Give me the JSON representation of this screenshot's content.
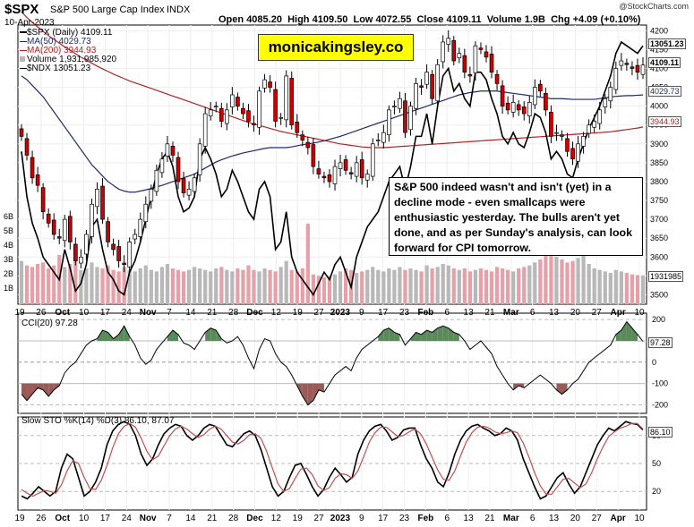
{
  "header": {
    "symbol": "$SPX",
    "name": "S&P 500 Large Cap Index",
    "exchange": "INDX",
    "date": "10-Apr-2023",
    "open_label": "Open",
    "open": "4085.20",
    "high_label": "High",
    "high": "4109.50",
    "low_label": "Low",
    "low": "4072.55",
    "close_label": "Close",
    "close": "4109.11",
    "volume_label": "Volume",
    "volume": "1.9B",
    "chg_label": "Chg",
    "chg": "+4.09 (+0.10%)",
    "watermark": "@StockCharts.com"
  },
  "brand": "monicakingsley.co",
  "legend": {
    "spx": "$SPX (Daily) 4109.11",
    "ma50": "MA(50) 4029.73",
    "ma200": "MA(200) 3944.93",
    "volume": "Volume 1,931,985,920",
    "ndx": "$NDX 13051.23"
  },
  "annotation": "S&P 500 indeed wasn't  and isn't (yet) in a decline mode - even smallcaps were enthusiastic yesterday. The bulls aren't yet done, and as per Sunday's analysis, can look forward for CPI tomorrow.",
  "price_labels": {
    "ndx": "13051.23",
    "close": "4109.11",
    "ma50": "4029.73",
    "ma200": "3944.93",
    "volume": "1931985",
    "cci": "97.28",
    "sto": "86.10"
  },
  "indicators": {
    "cci_title": "CCI(20) 97.28",
    "sto_title": "Slow STO %K(14) %D(3) 86.10, 87.07"
  },
  "colors": {
    "up": "#ffffff",
    "down": "#cc0000",
    "candle_outline": "#000000",
    "ma50": "#1f2a6b",
    "ma200": "#b22222",
    "ndx": "#000000",
    "volume_up": "#b8b8b8",
    "volume_down": "#e8a0a8",
    "cci_pos": "#5a8a5a",
    "cci_neg": "#9a5a55",
    "sto_d": "#c0504d",
    "brand_bg": "#ffff00"
  },
  "chart_data": [
    {
      "type": "candlestick",
      "title": "$SPX (Daily)",
      "y_ticks": [
        3500,
        3550,
        3600,
        3650,
        3700,
        3750,
        3800,
        3850,
        3900,
        3950,
        4000,
        4050,
        4100,
        4150,
        4200
      ],
      "ylim": [
        3475,
        4215
      ],
      "x_tick_labels": [
        "19",
        "26",
        "Oct",
        "10",
        "17",
        "24",
        "Nov",
        "7",
        "14",
        "21",
        "28",
        "Dec",
        "12",
        "19",
        "27",
        "2023",
        "9",
        "17",
        "23",
        "Feb",
        "6",
        "13",
        "21",
        "Mar",
        "6",
        "13",
        "20",
        "27",
        "Apr",
        "10"
      ],
      "volume_axis_labels": [
        "6B",
        "5B",
        "4B",
        "3B",
        "2B",
        "1B"
      ],
      "close": [
        3920,
        3870,
        3810,
        3790,
        3720,
        3690,
        3660,
        3650,
        3700,
        3640,
        3590,
        3600,
        3660,
        3740,
        3780,
        3700,
        3640,
        3620,
        3590,
        3580,
        3640,
        3660,
        3700,
        3740,
        3780,
        3830,
        3860,
        3900,
        3870,
        3800,
        3770,
        3780,
        3810,
        3900,
        3980,
        3990,
        4000,
        3960,
        3990,
        4030,
        4000,
        3980,
        3960,
        3950,
        4040,
        4070,
        4050,
        3960,
        3970,
        4080,
        3950,
        3930,
        3910,
        3890,
        3840,
        3820,
        3810,
        3800,
        3840,
        3850,
        3830,
        3820,
        3850,
        3810,
        3820,
        3900,
        3910,
        3930,
        3990,
        4000,
        4020,
        3930,
        4000,
        4060,
        4050,
        4090,
        4020,
        4110,
        4170,
        4180,
        4120,
        4140,
        4090,
        4080,
        4160,
        4150,
        4130,
        4090,
        4060,
        4000,
        3990,
        4010,
        3990,
        3980,
        4010,
        4050,
        4040,
        3990,
        3920,
        3930,
        3920,
        3880,
        3860,
        3900,
        3920,
        3950,
        3960,
        3990,
        4020,
        4050,
        4100,
        4120,
        4110,
        4100,
        4090,
        4109
      ],
      "ma50": [
        4080,
        4070,
        4055,
        4040,
        4025,
        4005,
        3985,
        3965,
        3945,
        3925,
        3905,
        3885,
        3865,
        3845,
        3830,
        3815,
        3800,
        3790,
        3780,
        3775,
        3772,
        3772,
        3775,
        3778,
        3782,
        3786,
        3790,
        3795,
        3800,
        3805,
        3810,
        3815,
        3820,
        3828,
        3836,
        3844,
        3852,
        3858,
        3863,
        3868,
        3872,
        3876,
        3879,
        3882,
        3885,
        3888,
        3890,
        3890,
        3890,
        3890,
        3892,
        3895,
        3898,
        3900,
        3902,
        3905,
        3908,
        3912,
        3916,
        3920,
        3925,
        3930,
        3935,
        3940,
        3945,
        3950,
        3955,
        3960,
        3965,
        3970,
        3975,
        3980,
        3985,
        3990,
        3995,
        4000,
        4005,
        4010,
        4015,
        4020,
        4025,
        4030,
        4033,
        4036,
        4038,
        4040,
        4040,
        4040,
        4040,
        4038,
        4036,
        4034,
        4032,
        4030,
        4028,
        4026,
        4024,
        4022,
        4020,
        4020,
        4020,
        4019,
        4018,
        4018,
        4018,
        4018,
        4018,
        4020,
        4022,
        4024,
        4026,
        4027,
        4028,
        4028,
        4029,
        4029.73
      ],
      "ma200": [
        4250,
        4235,
        4222,
        4210,
        4198,
        4187,
        4177,
        4167,
        4157,
        4148,
        4139,
        4130,
        4122,
        4114,
        4106,
        4099,
        4092,
        4085,
        4079,
        4073,
        4067,
        4062,
        4057,
        4052,
        4047,
        4042,
        4037,
        4032,
        4027,
        4022,
        4017,
        4012,
        4007,
        4002,
        3997,
        3992,
        3987,
        3982,
        3977,
        3972,
        3967,
        3962,
        3957,
        3953,
        3949,
        3945,
        3941,
        3937,
        3933,
        3930,
        3927,
        3924,
        3921,
        3918,
        3915,
        3912,
        3909,
        3906,
        3903,
        3900,
        3898,
        3896,
        3894,
        3892,
        3891,
        3890,
        3890,
        3890,
        3891,
        3892,
        3893,
        3894,
        3895,
        3896,
        3897,
        3898,
        3899,
        3900,
        3901,
        3902,
        3903,
        3904,
        3905,
        3906,
        3907,
        3908,
        3909,
        3910,
        3911,
        3912,
        3913,
        3914,
        3915,
        3916,
        3917,
        3918,
        3919,
        3920,
        3921,
        3922,
        3923,
        3924,
        3925,
        3926,
        3927,
        3928,
        3929,
        3930,
        3931,
        3932,
        3934,
        3936,
        3938,
        3940,
        3942,
        3944.93
      ],
      "ndx_overlay": [
        3880,
        3760,
        3690,
        3650,
        3600,
        3580,
        3560,
        3540,
        3620,
        3570,
        3510,
        3530,
        3580,
        3680,
        3700,
        3620,
        3560,
        3540,
        3510,
        3500,
        3560,
        3590,
        3640,
        3700,
        3760,
        3820,
        3860,
        3880,
        3840,
        3760,
        3720,
        3730,
        3760,
        3860,
        3890,
        3860,
        3820,
        3760,
        3780,
        3830,
        3800,
        3760,
        3720,
        3700,
        3780,
        3800,
        3760,
        3620,
        3640,
        3720,
        3600,
        3560,
        3540,
        3520,
        3500,
        3530,
        3560,
        3540,
        3580,
        3600,
        3560,
        3520,
        3600,
        3640,
        3680,
        3700,
        3720,
        3760,
        3800,
        3820,
        3840,
        3780,
        3840,
        3920,
        3920,
        3980,
        3900,
        4000,
        4080,
        4100,
        4040,
        4060,
        4020,
        4000,
        4090,
        4090,
        4070,
        4020,
        3980,
        3920,
        3900,
        3930,
        3900,
        3890,
        3930,
        3980,
        3970,
        3930,
        3860,
        3880,
        3860,
        3820,
        3810,
        3860,
        3900,
        3940,
        3970,
        4000,
        4040,
        4080,
        4140,
        4170,
        4160,
        4150,
        4140,
        4160
      ],
      "volume_millions": [
        2900,
        2600,
        2500,
        2700,
        2800,
        2400,
        2600,
        3300,
        2500,
        2700,
        2900,
        2300,
        2400,
        2800,
        2500,
        2400,
        2600,
        2300,
        2200,
        2500,
        2300,
        2200,
        2400,
        2600,
        2300,
        2200,
        2500,
        2700,
        2400,
        2300,
        2200,
        2300,
        2500,
        2400,
        2300,
        2200,
        2400,
        2500,
        2300,
        2200,
        2400,
        2300,
        2600,
        2300,
        2200,
        2400,
        2300,
        2200,
        2500,
        2900,
        2300,
        2200,
        2400,
        5400,
        2000,
        1900,
        1800,
        1900,
        2000,
        2200,
        2400,
        2300,
        2100,
        2200,
        2300,
        2500,
        2300,
        2200,
        2400,
        2300,
        2500,
        2300,
        2400,
        2300,
        2200,
        2600,
        2400,
        2500,
        2700,
        2600,
        2400,
        2300,
        2400,
        2200,
        2300,
        2400,
        2300,
        2200,
        2500,
        2400,
        2300,
        2200,
        2400,
        2500,
        2600,
        2800,
        3000,
        3400,
        3800,
        3200,
        3000,
        2800,
        2900,
        3100,
        3300,
        2700,
        2400,
        2300,
        2200,
        2100,
        2300,
        2200,
        2100,
        2000,
        1950,
        1932
      ]
    },
    {
      "type": "line",
      "title": "CCI(20) 97.28",
      "y_ticks": [
        -200,
        -100,
        0,
        100,
        200
      ],
      "ylim": [
        -240,
        230
      ],
      "values": [
        -150,
        -180,
        -150,
        -120,
        -130,
        -160,
        -130,
        -110,
        -50,
        -20,
        0,
        40,
        80,
        100,
        110,
        150,
        140,
        110,
        130,
        170,
        120,
        80,
        20,
        -10,
        10,
        60,
        90,
        120,
        150,
        130,
        90,
        80,
        60,
        100,
        140,
        160,
        150,
        110,
        90,
        100,
        120,
        80,
        20,
        -30,
        60,
        110,
        100,
        40,
        0,
        -20,
        -60,
        -110,
        -160,
        -200,
        -180,
        -130,
        -140,
        -100,
        -60,
        -40,
        -20,
        -40,
        20,
        60,
        80,
        100,
        120,
        150,
        160,
        140,
        130,
        80,
        110,
        140,
        130,
        150,
        140,
        160,
        170,
        160,
        140,
        130,
        100,
        60,
        80,
        100,
        70,
        40,
        -20,
        -60,
        -100,
        -130,
        -110,
        -120,
        -100,
        -80,
        -60,
        -80,
        -100,
        -130,
        -150,
        -130,
        -100,
        -80,
        -40,
        0,
        20,
        40,
        60,
        80,
        130,
        150,
        190,
        160,
        130,
        97.28
      ]
    },
    {
      "type": "line",
      "title": "Slow STO %K(14) %D(3)",
      "y_ticks": [
        20,
        50,
        80
      ],
      "ylim": [
        0,
        100
      ],
      "series": [
        {
          "name": "%K",
          "values": [
            15,
            12,
            18,
            25,
            20,
            15,
            20,
            45,
            60,
            55,
            35,
            15,
            20,
            30,
            45,
            70,
            85,
            92,
            95,
            92,
            80,
            60,
            48,
            55,
            70,
            82,
            88,
            92,
            90,
            80,
            75,
            80,
            88,
            92,
            90,
            80,
            70,
            68,
            75,
            82,
            85,
            80,
            65,
            45,
            25,
            15,
            20,
            35,
            48,
            50,
            38,
            25,
            15,
            22,
            35,
            45,
            38,
            30,
            35,
            60,
            75,
            85,
            90,
            92,
            85,
            75,
            78,
            86,
            88,
            88,
            70,
            55,
            45,
            30,
            25,
            40,
            60,
            75,
            85,
            90,
            92,
            88,
            85,
            80,
            82,
            88,
            85,
            75,
            55,
            40,
            25,
            12,
            15,
            25,
            35,
            40,
            28,
            18,
            25,
            40,
            55,
            70,
            80,
            88,
            85,
            90,
            95,
            93,
            92,
            86.1
          ]
        },
        {
          "name": "%D",
          "values": [
            22,
            18,
            15,
            18,
            21,
            20,
            18,
            27,
            42,
            53,
            50,
            35,
            23,
            22,
            32,
            48,
            67,
            82,
            90,
            93,
            89,
            77,
            63,
            54,
            58,
            69,
            80,
            87,
            90,
            87,
            82,
            78,
            81,
            87,
            90,
            87,
            80,
            73,
            71,
            75,
            81,
            82,
            77,
            63,
            45,
            28,
            20,
            23,
            34,
            44,
            45,
            38,
            26,
            21,
            24,
            34,
            39,
            38,
            34,
            42,
            57,
            73,
            83,
            89,
            89,
            84,
            79,
            80,
            84,
            87,
            82,
            71,
            57,
            43,
            33,
            32,
            42,
            58,
            73,
            83,
            89,
            90,
            88,
            84,
            82,
            83,
            85,
            83,
            72,
            57,
            40,
            26,
            17,
            17,
            25,
            33,
            34,
            29,
            24,
            28,
            40,
            55,
            68,
            79,
            84,
            88,
            90,
            93,
            93,
            87.07
          ]
        }
      ]
    }
  ]
}
